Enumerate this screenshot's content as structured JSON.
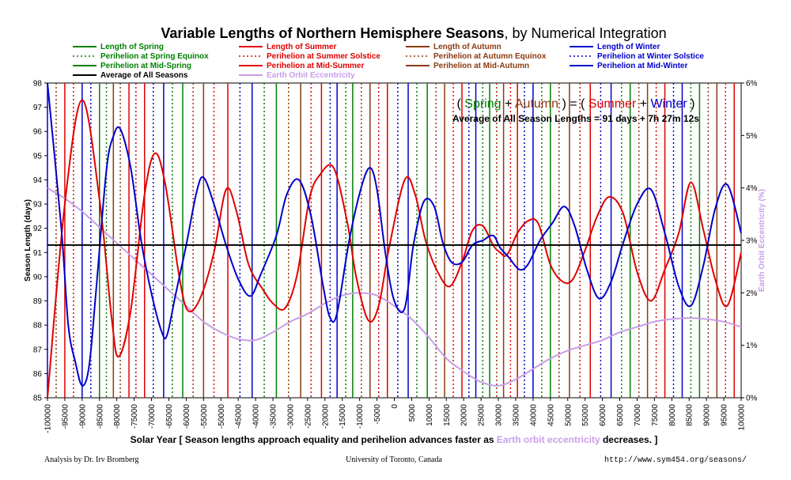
{
  "chart_data": {
    "type": "line",
    "title": "Variable Lengths of Northern Hemisphere Seasons",
    "title_suffix": ", by Numerical Integration",
    "xlabel_prefix": "Solar Year [ Season lengths approach equality and perihelion advances faster as ",
    "xlabel_highlight": "Earth orbit eccentricity",
    "xlabel_suffix": " decreases. ]",
    "ylabel": "Season Length (days)",
    "y2label": "Earth Orbit Eccentricity (%)",
    "xlim": [
      -100000,
      100000
    ],
    "ylim": [
      85,
      98
    ],
    "y2lim": [
      0,
      6
    ],
    "x_ticks": [
      -100000,
      -95000,
      -90000,
      -85000,
      -80000,
      -75000,
      -70000,
      -65000,
      -60000,
      -55000,
      -50000,
      -45000,
      -40000,
      -35000,
      -30000,
      -25000,
      -20000,
      -15000,
      -10000,
      -5000,
      0,
      5000,
      10000,
      15000,
      20000,
      25000,
      30000,
      35000,
      40000,
      45000,
      50000,
      55000,
      60000,
      65000,
      70000,
      75000,
      80000,
      85000,
      90000,
      95000,
      100000
    ],
    "y_ticks": [
      85,
      86,
      87,
      88,
      89,
      90,
      91,
      92,
      93,
      94,
      95,
      96,
      97,
      98
    ],
    "y2_ticks": [
      "0%",
      "1%",
      "2%",
      "3%",
      "4%",
      "5%",
      "6%"
    ],
    "grid": false,
    "legend_position": "top",
    "colors": {
      "spring": "#008000",
      "summer": "#e00000",
      "autumn": "#8b3a0f",
      "winter": "#0000cc",
      "average": "#000000",
      "eccentricity": "#c89ee8"
    },
    "legend": [
      {
        "label": "Length of Spring",
        "style": "solid",
        "color": "#008000",
        "column": 0
      },
      {
        "label": "Perihelion at Spring Equinox",
        "style": "dotted",
        "color": "#008000",
        "column": 0
      },
      {
        "label": "Perihelion at Mid-Spring",
        "style": "solid",
        "color": "#008000",
        "column": 0
      },
      {
        "label": "Average of All Seasons",
        "style": "solid",
        "color": "#000000",
        "column": 0
      },
      {
        "label": "Length of Summer",
        "style": "solid",
        "color": "#e00000",
        "column": 1
      },
      {
        "label": "Perihelion at Summer Solstice",
        "style": "dotted",
        "color": "#e00000",
        "column": 1
      },
      {
        "label": "Perihelion at Mid-Summer",
        "style": "solid",
        "color": "#e00000",
        "column": 1
      },
      {
        "label": "Earth Orbit Eccentricity",
        "style": "solid",
        "color": "#c89ee8",
        "column": 1
      },
      {
        "label": "Length of Autumn",
        "style": "solid",
        "color": "#8b3a0f",
        "column": 2
      },
      {
        "label": "Perihelion at Autumn Equinox",
        "style": "dotted",
        "color": "#8b3a0f",
        "column": 2
      },
      {
        "label": "Perihelion at Mid-Autumn",
        "style": "solid",
        "color": "#8b3a0f",
        "column": 2
      },
      {
        "label": "Length of Winter",
        "style": "solid",
        "color": "#0000cc",
        "column": 3
      },
      {
        "label": "Perihelion at Winter Solstice",
        "style": "dotted",
        "color": "#0000cc",
        "column": 3
      },
      {
        "label": "Perihelion at Mid-Winter",
        "style": "solid",
        "color": "#0000cc",
        "column": 3
      }
    ],
    "average_days": 91.31,
    "series": [
      {
        "name": "Length of Summer",
        "key": "summer",
        "x": [
          -100000,
          -95000,
          -90000,
          -85000,
          -81500,
          -79500,
          -76000,
          -72000,
          -69000,
          -66000,
          -62000,
          -59500,
          -56000,
          -52000,
          -48500,
          -45500,
          -42000,
          -38000,
          -35000,
          -31500,
          -28000,
          -24500,
          -21500,
          -17500,
          -13500,
          -11000,
          -7500,
          -4500,
          -1500,
          3000,
          6000,
          9000,
          12500,
          16000,
          19500,
          22500,
          25500,
          28500,
          30500,
          32500,
          35500,
          38500,
          41500,
          45000,
          48500,
          51500,
          55000,
          58500,
          62000,
          66000,
          70000,
          74000,
          78000,
          82000,
          85500,
          89000,
          92500,
          96000,
          100000
        ],
        "y": [
          85.0,
          93.0,
          97.3,
          93.2,
          88.3,
          86.7,
          88.6,
          93.4,
          95.1,
          93.8,
          90.0,
          88.6,
          89.1,
          91.0,
          93.6,
          92.7,
          90.5,
          89.5,
          88.9,
          88.7,
          90.1,
          93.2,
          94.2,
          94.5,
          92.2,
          90.0,
          88.2,
          88.8,
          91.2,
          94.0,
          93.4,
          91.5,
          90.2,
          89.6,
          90.6,
          91.9,
          92.1,
          91.3,
          91.0,
          90.9,
          91.8,
          92.3,
          92.2,
          90.5,
          89.8,
          89.9,
          91.1,
          92.5,
          93.3,
          92.6,
          90.2,
          89.0,
          90.3,
          91.8,
          93.9,
          92.0,
          89.9,
          88.8,
          91.0
        ]
      },
      {
        "name": "Length of Winter",
        "key": "winter",
        "x": [
          -100000,
          -96000,
          -94000,
          -92000,
          -90000,
          -88000,
          -86000,
          -83000,
          -81000,
          -79000,
          -76000,
          -73000,
          -70000,
          -67000,
          -65500,
          -63000,
          -60000,
          -57000,
          -55000,
          -52000,
          -48500,
          -45000,
          -41500,
          -38500,
          -34000,
          -31000,
          -27500,
          -24000,
          -20500,
          -18500,
          -16500,
          -13000,
          -9500,
          -7000,
          -5000,
          -2500,
          0,
          3000,
          5500,
          8500,
          11500,
          14000,
          16500,
          19500,
          22500,
          25500,
          28500,
          30500,
          33000,
          36000,
          38500,
          42000,
          45500,
          49000,
          52000,
          55500,
          59000,
          62500,
          66000,
          70000,
          74000,
          78000,
          82000,
          85500,
          89000,
          92500,
          96000,
          100000
        ],
        "y": [
          98.0,
          92.0,
          88.0,
          86.5,
          85.5,
          86.3,
          89.4,
          94.4,
          95.8,
          96.1,
          94.5,
          91.5,
          89.3,
          87.7,
          87.6,
          89.3,
          91.3,
          93.5,
          94.1,
          93.0,
          91.3,
          89.9,
          89.2,
          90.1,
          91.7,
          93.4,
          94.0,
          92.5,
          89.6,
          88.3,
          88.5,
          91.5,
          93.7,
          94.5,
          93.6,
          90.9,
          89.0,
          88.7,
          91.3,
          93.1,
          92.9,
          91.4,
          90.6,
          90.6,
          91.3,
          91.5,
          91.7,
          91.2,
          90.8,
          90.3,
          90.5,
          91.5,
          92.2,
          92.9,
          92.1,
          90.3,
          89.1,
          89.8,
          91.4,
          93.0,
          93.6,
          91.8,
          89.6,
          88.8,
          90.4,
          92.8,
          93.8,
          91.8
        ]
      },
      {
        "name": "Average of All Seasons",
        "key": "average",
        "x": [
          -100000,
          100000
        ],
        "y": [
          91.31,
          91.31
        ]
      },
      {
        "name": "Earth Orbit Eccentricity",
        "key": "eccentricity",
        "axis": "y2",
        "x": [
          -100000,
          -95000,
          -90000,
          -85000,
          -80000,
          -75000,
          -70000,
          -65000,
          -60000,
          -55000,
          -50000,
          -45000,
          -40000,
          -35000,
          -30000,
          -25000,
          -20000,
          -15000,
          -10000,
          -5000,
          0,
          5000,
          10000,
          15000,
          20000,
          25000,
          30000,
          35000,
          40000,
          45000,
          50000,
          55000,
          60000,
          65000,
          70000,
          75000,
          80000,
          85000,
          90000,
          95000,
          100000
        ],
        "y": [
          4.0,
          3.8,
          3.55,
          3.25,
          2.95,
          2.65,
          2.35,
          2.05,
          1.75,
          1.45,
          1.25,
          1.12,
          1.1,
          1.25,
          1.45,
          1.6,
          1.8,
          1.95,
          2.0,
          1.95,
          1.75,
          1.5,
          1.15,
          0.75,
          0.5,
          0.3,
          0.23,
          0.35,
          0.55,
          0.75,
          0.9,
          1.0,
          1.1,
          1.25,
          1.35,
          1.45,
          1.5,
          1.52,
          1.5,
          1.45,
          1.35
        ]
      }
    ],
    "markers": [
      {
        "x": -100000,
        "type": "mid",
        "season": "winter"
      },
      {
        "x": -97500,
        "type": "equinox",
        "season": "autumn"
      },
      {
        "x": -95000,
        "type": "mid",
        "season": "summer"
      },
      {
        "x": -92500,
        "type": "equinox",
        "season": "summer"
      },
      {
        "x": -90000,
        "type": "mid",
        "season": "winter"
      },
      {
        "x": -87500,
        "type": "equinox",
        "season": "winter"
      },
      {
        "x": -85000,
        "type": "mid",
        "season": "spring"
      },
      {
        "x": -83000,
        "type": "equinox",
        "season": "spring"
      },
      {
        "x": -81000,
        "type": "mid",
        "season": "autumn"
      },
      {
        "x": -79000,
        "type": "equinox",
        "season": "autumn"
      },
      {
        "x": -76500,
        "type": "mid",
        "season": "summer"
      },
      {
        "x": -74500,
        "type": "equinox",
        "season": "summer"
      },
      {
        "x": -72000,
        "type": "mid",
        "season": "summer"
      },
      {
        "x": -69500,
        "type": "equinox",
        "season": "winter"
      },
      {
        "x": -66500,
        "type": "mid",
        "season": "winter"
      },
      {
        "x": -64000,
        "type": "equinox",
        "season": "spring"
      },
      {
        "x": -61000,
        "type": "mid",
        "season": "spring"
      },
      {
        "x": -58000,
        "type": "equinox",
        "season": "autumn"
      },
      {
        "x": -55000,
        "type": "mid",
        "season": "autumn"
      },
      {
        "x": -52000,
        "type": "equinox",
        "season": "summer"
      },
      {
        "x": -48000,
        "type": "mid",
        "season": "summer"
      },
      {
        "x": -44500,
        "type": "equinox",
        "season": "winter"
      },
      {
        "x": -41000,
        "type": "mid",
        "season": "winter"
      },
      {
        "x": -37500,
        "type": "equinox",
        "season": "spring"
      },
      {
        "x": -34000,
        "type": "mid",
        "season": "spring"
      },
      {
        "x": -30500,
        "type": "equinox",
        "season": "autumn"
      },
      {
        "x": -27000,
        "type": "mid",
        "season": "autumn"
      },
      {
        "x": -24000,
        "type": "equinox",
        "season": "summer"
      },
      {
        "x": -21000,
        "type": "mid",
        "season": "summer"
      },
      {
        "x": -18500,
        "type": "equinox",
        "season": "winter"
      },
      {
        "x": -16500,
        "type": "mid",
        "season": "winter"
      },
      {
        "x": -14000,
        "type": "equinox",
        "season": "spring"
      },
      {
        "x": -12000,
        "type": "mid",
        "season": "spring"
      },
      {
        "x": -9500,
        "type": "equinox",
        "season": "autumn"
      },
      {
        "x": -7000,
        "type": "mid",
        "season": "autumn"
      },
      {
        "x": -4500,
        "type": "equinox",
        "season": "summer"
      },
      {
        "x": -2000,
        "type": "mid",
        "season": "summer"
      },
      {
        "x": 1000,
        "type": "equinox",
        "season": "winter"
      },
      {
        "x": 4000,
        "type": "mid",
        "season": "winter"
      },
      {
        "x": 6500,
        "type": "equinox",
        "season": "spring"
      },
      {
        "x": 9500,
        "type": "mid",
        "season": "spring"
      },
      {
        "x": 12000,
        "type": "equinox",
        "season": "autumn"
      },
      {
        "x": 14500,
        "type": "mid",
        "season": "autumn"
      },
      {
        "x": 17000,
        "type": "equinox",
        "season": "summer"
      },
      {
        "x": 19500,
        "type": "mid",
        "season": "summer"
      },
      {
        "x": 21500,
        "type": "equinox",
        "season": "winter"
      },
      {
        "x": 23500,
        "type": "mid",
        "season": "winter"
      },
      {
        "x": 25500,
        "type": "equinox",
        "season": "spring"
      },
      {
        "x": 27500,
        "type": "mid",
        "season": "spring"
      },
      {
        "x": 29500,
        "type": "equinox",
        "season": "autumn"
      },
      {
        "x": 31500,
        "type": "mid",
        "season": "autumn"
      },
      {
        "x": 33500,
        "type": "equinox",
        "season": "summer"
      },
      {
        "x": 35500,
        "type": "mid",
        "season": "summer"
      },
      {
        "x": 37500,
        "type": "equinox",
        "season": "winter"
      },
      {
        "x": 40000,
        "type": "mid",
        "season": "winter"
      },
      {
        "x": 42500,
        "type": "equinox",
        "season": "spring"
      },
      {
        "x": 45000,
        "type": "mid",
        "season": "spring"
      },
      {
        "x": 47500,
        "type": "equinox",
        "season": "autumn"
      },
      {
        "x": 50500,
        "type": "mid",
        "season": "autumn"
      },
      {
        "x": 53500,
        "type": "equinox",
        "season": "summer"
      },
      {
        "x": 56500,
        "type": "mid",
        "season": "summer"
      },
      {
        "x": 59500,
        "type": "equinox",
        "season": "winter"
      },
      {
        "x": 62500,
        "type": "mid",
        "season": "winter"
      },
      {
        "x": 65500,
        "type": "equinox",
        "season": "spring"
      },
      {
        "x": 68000,
        "type": "mid",
        "season": "spring"
      },
      {
        "x": 70500,
        "type": "equinox",
        "season": "autumn"
      },
      {
        "x": 73000,
        "type": "mid",
        "season": "autumn"
      },
      {
        "x": 75500,
        "type": "equinox",
        "season": "summer"
      },
      {
        "x": 78000,
        "type": "mid",
        "season": "summer"
      },
      {
        "x": 80500,
        "type": "equinox",
        "season": "winter"
      },
      {
        "x": 83000,
        "type": "mid",
        "season": "winter"
      },
      {
        "x": 85500,
        "type": "equinox",
        "season": "spring"
      },
      {
        "x": 88000,
        "type": "mid",
        "season": "spring"
      },
      {
        "x": 90500,
        "type": "equinox",
        "season": "autumn"
      },
      {
        "x": 93000,
        "type": "mid",
        "season": "autumn"
      },
      {
        "x": 95500,
        "type": "equinox",
        "season": "summer"
      },
      {
        "x": 98000,
        "type": "mid",
        "season": "summer"
      }
    ]
  },
  "annotation": {
    "open": "( ",
    "spring": "Spring",
    "plus1": " + ",
    "autumn": "Autumn",
    "mid": " ) = ( ",
    "summer": "Summer",
    "plus2": " + ",
    "winter": "Winter",
    "close": " )",
    "average_line": "Average of All Season Lengths = 91 days + 7h 27m 12s"
  },
  "footer": {
    "author": "Analysis by Dr. Irv Bromberg",
    "institution": "University of Toronto, Canada",
    "url": "http://www.sym454.org/seasons/"
  }
}
